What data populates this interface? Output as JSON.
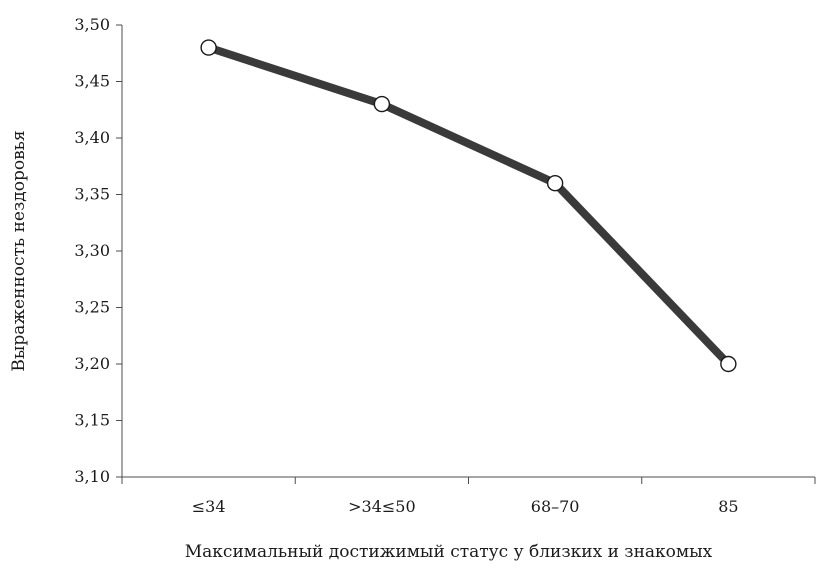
{
  "chart_data": {
    "type": "line",
    "categories": [
      "≤34",
      ">34≤50",
      "68–70",
      "85"
    ],
    "series": [
      {
        "values": [
          3.48,
          3.43,
          3.36,
          3.2
        ]
      }
    ],
    "xlabel": "Максимальный достижимый статус у близких и знакомых",
    "ylabel": "Выраженность нездоровья",
    "ylim": [
      3.1,
      3.5
    ],
    "yticks": [
      "3,10",
      "3,15",
      "3,20",
      "3,25",
      "3,30",
      "3,35",
      "3,40",
      "3,45",
      "3,50"
    ],
    "grid": false,
    "line_color": "#3a3a3a",
    "marker": "open-circle"
  }
}
